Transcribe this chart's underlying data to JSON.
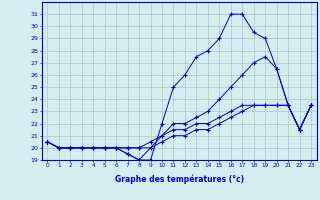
{
  "xlabel": "Graphe des températures (°c)",
  "background_color": "#d4eef0",
  "grid_color": "#a8c8cc",
  "line_color": "#0000cc",
  "series": [
    [
      20.5,
      20.0,
      20.0,
      20.0,
      20.0,
      20.0,
      20.0,
      19.5,
      19.0,
      19.0,
      22.0,
      25.0,
      26.0,
      27.5,
      28.0,
      29.0,
      31.0,
      31.0,
      29.5,
      29.0,
      26.5,
      23.5,
      21.5,
      23.5
    ],
    [
      20.5,
      20.0,
      20.0,
      20.0,
      20.0,
      20.0,
      20.0,
      19.5,
      19.0,
      20.0,
      21.0,
      22.0,
      22.0,
      22.5,
      23.0,
      24.0,
      25.0,
      26.0,
      27.0,
      27.5,
      26.5,
      23.5,
      21.5,
      23.5
    ],
    [
      20.5,
      20.0,
      20.0,
      20.0,
      20.0,
      20.0,
      20.0,
      20.0,
      20.0,
      20.5,
      21.0,
      21.5,
      21.5,
      22.0,
      22.0,
      22.5,
      23.0,
      23.5,
      23.5,
      23.5,
      23.5,
      23.5,
      21.5,
      23.5
    ],
    [
      20.5,
      20.0,
      20.0,
      20.0,
      20.0,
      20.0,
      20.0,
      20.0,
      20.0,
      20.0,
      20.5,
      21.0,
      21.0,
      21.5,
      21.5,
      22.0,
      22.5,
      23.0,
      23.5,
      23.5,
      23.5,
      23.5,
      21.5,
      23.5
    ]
  ],
  "x": [
    0,
    1,
    2,
    3,
    4,
    5,
    6,
    7,
    8,
    9,
    10,
    11,
    12,
    13,
    14,
    15,
    16,
    17,
    18,
    19,
    20,
    21,
    22,
    23
  ],
  "xlim": [
    -0.5,
    23.5
  ],
  "ylim": [
    19,
    32
  ],
  "yticks": [
    19,
    20,
    21,
    22,
    23,
    24,
    25,
    26,
    27,
    28,
    29,
    30,
    31
  ],
  "xticks": [
    0,
    1,
    2,
    3,
    4,
    5,
    6,
    7,
    8,
    9,
    10,
    11,
    12,
    13,
    14,
    15,
    16,
    17,
    18,
    19,
    20,
    21,
    22,
    23
  ],
  "xtick_labels": [
    "0",
    "1",
    "2",
    "3",
    "4",
    "5",
    "6",
    "7",
    "8",
    "9",
    "10",
    "11",
    "12",
    "13",
    "14",
    "15",
    "16",
    "17",
    "18",
    "19",
    "20",
    "21",
    "22",
    "23"
  ]
}
